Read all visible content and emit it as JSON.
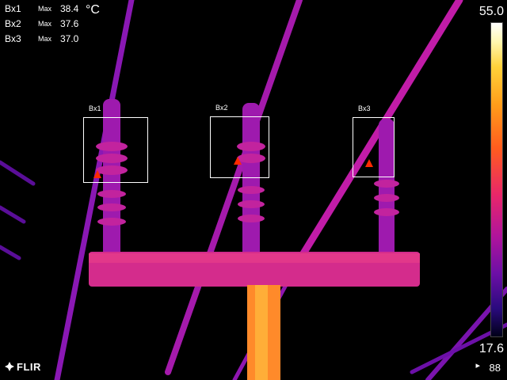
{
  "measurements": [
    {
      "name": "Bx1",
      "kind": "Max",
      "value": "38.4"
    },
    {
      "name": "Bx2",
      "kind": "Max",
      "value": "37.6"
    },
    {
      "name": "Bx3",
      "kind": "Max",
      "value": "37.0"
    }
  ],
  "unit": "°C",
  "boxes": [
    {
      "label": "Bx1"
    },
    {
      "label": "Bx2"
    },
    {
      "label": "Bx3"
    }
  ],
  "scale": {
    "max": "55.0",
    "min": "17.6"
  },
  "brand": {
    "name": "FLIR"
  },
  "status": {
    "bottom_right": "88",
    "icon": "battery-icon"
  },
  "colors": {
    "hot": "#ffd23a",
    "warm": "#ff5c1e",
    "mid": "#c8109c",
    "cool": "#7a16b4",
    "marker": "#ff2a00"
  }
}
